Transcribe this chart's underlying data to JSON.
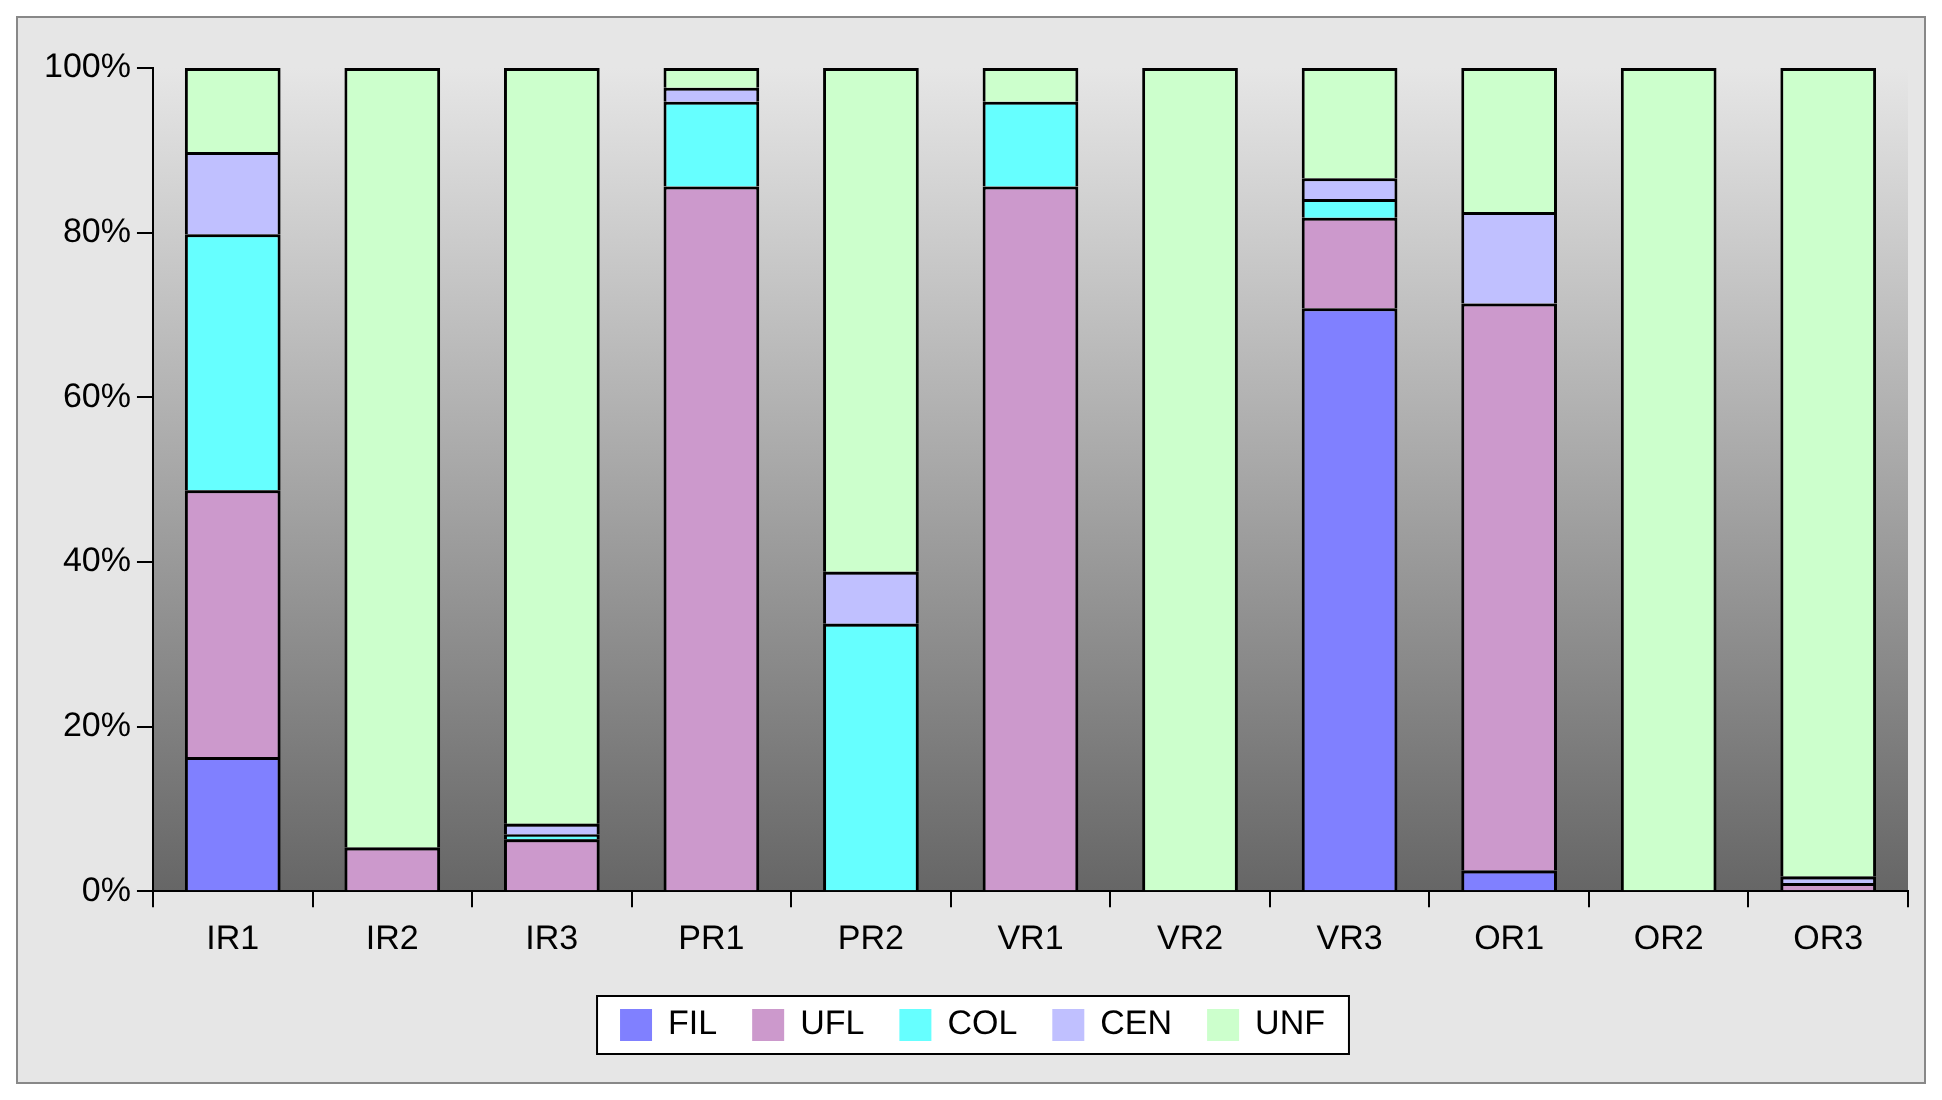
{
  "chart_data": {
    "type": "bar",
    "stacked": true,
    "categories": [
      "IR1",
      "IR2",
      "IR3",
      "PR1",
      "PR2",
      "VR1",
      "VR2",
      "VR3",
      "OR1",
      "OR2",
      "OR3"
    ],
    "series": [
      {
        "name": "FIL",
        "color": "#8080ff",
        "values": [
          16.3,
          0,
          0,
          0,
          0,
          0,
          0,
          70.8,
          2.5,
          0,
          null
        ]
      },
      {
        "name": "UFL",
        "color": "#cc99cc",
        "values": [
          32.4,
          5.3,
          6.3,
          85.6,
          0,
          85.6,
          0,
          11,
          68.9,
          0,
          1
        ]
      },
      {
        "name": "COL",
        "color": "#66ffff",
        "values": [
          31.1,
          0,
          0.6,
          10.3,
          32.5,
          10.3,
          0,
          2.3,
          0,
          0,
          0
        ]
      },
      {
        "name": "CEN",
        "color": "#c0c0ff",
        "values": [
          10,
          null,
          1.3,
          1.7,
          6.3,
          null,
          0,
          2.5,
          11.1,
          0,
          0.8
        ]
      },
      {
        "name": "UNF",
        "color": "#ccffcc",
        "values": [
          10.2,
          94.7,
          91.8,
          2.4,
          61.2,
          4.1,
          100,
          13.4,
          17.5,
          100,
          98.2
        ]
      }
    ],
    "ylim": [
      0,
      100
    ],
    "yticks": [
      {
        "value": 0,
        "label": "0%"
      },
      {
        "value": 20,
        "label": "20%"
      },
      {
        "value": 40,
        "label": "40%"
      },
      {
        "value": 60,
        "label": "60%"
      },
      {
        "value": 80,
        "label": "80%"
      },
      {
        "value": 100,
        "label": "100%"
      }
    ],
    "grid": false,
    "legend": "bottom"
  }
}
